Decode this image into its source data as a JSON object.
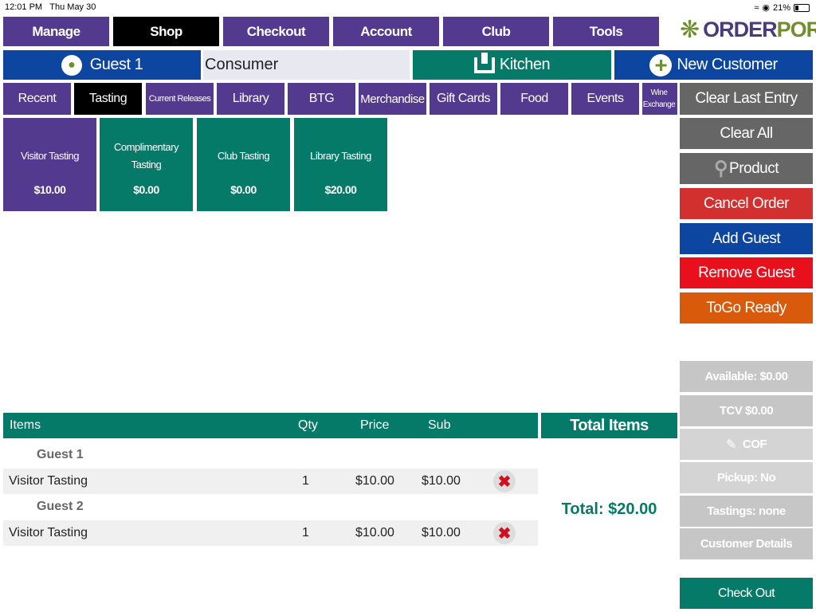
{
  "status": {
    "time": "12:01 PM",
    "date": "Thu May 30",
    "battery": "21%"
  },
  "nav": {
    "items": [
      "Manage",
      "Shop",
      "Checkout",
      "Account",
      "Club",
      "Tools"
    ],
    "active": "Shop"
  },
  "logo": {
    "text_a": "ORDER",
    "text_b": "PORT"
  },
  "customer_bar": {
    "guest": "Guest 1",
    "customer_type": "Consumer",
    "kitchen": "Kitchen",
    "new_customer": "New Customer"
  },
  "categories": [
    "Recent",
    "Tasting",
    "Current Releases",
    "Library",
    "BTG",
    "Merchandise",
    "Gift Cards",
    "Food",
    "Events",
    "Wine Exchange"
  ],
  "active_category": "Tasting",
  "products": [
    {
      "name": "Visitor Tasting",
      "price": "$10.00",
      "color": "#533a8e"
    },
    {
      "name": "Complimentary Tasting",
      "price": "$0.00",
      "color": "#067a68"
    },
    {
      "name": "Club Tasting",
      "price": "$0.00",
      "color": "#067a68"
    },
    {
      "name": "Library Tasting",
      "price": "$20.00",
      "color": "#067a68"
    }
  ],
  "actions": {
    "clear_last": "Clear Last Entry",
    "clear_all": "Clear All",
    "product": "Product",
    "cancel": "Cancel Order",
    "add_guest": "Add Guest",
    "remove_guest": "Remove Guest",
    "togo": "ToGo Ready"
  },
  "info": {
    "available": "Available: $0.00",
    "tcv": "TCV $0.00",
    "cof": "COF",
    "pickup": "Pickup: No",
    "tastings": "Tastings: none",
    "customer_details": "Customer Details",
    "checkout": "Check Out"
  },
  "order": {
    "headers": {
      "items": "Items",
      "qty": "Qty",
      "price": "Price",
      "sub": "Sub"
    },
    "groups": [
      {
        "guest": "Guest 1",
        "lines": [
          {
            "item": "Visitor Tasting",
            "qty": "1",
            "price": "$10.00",
            "sub": "$10.00"
          }
        ]
      },
      {
        "guest": "Guest 2",
        "lines": [
          {
            "item": "Visitor Tasting",
            "qty": "1",
            "price": "$10.00",
            "sub": "$10.00"
          }
        ]
      }
    ],
    "total_items_label": "Total Items",
    "total": "Total: $20.00"
  }
}
